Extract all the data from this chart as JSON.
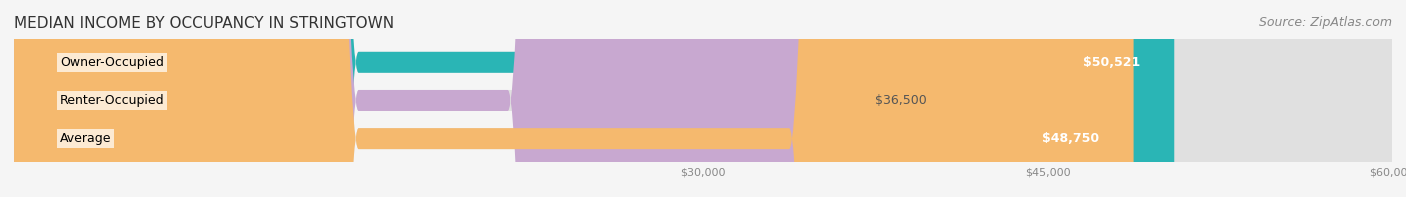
{
  "title": "MEDIAN INCOME BY OCCUPANCY IN STRINGTOWN",
  "source": "Source: ZipAtlas.com",
  "categories": [
    "Owner-Occupied",
    "Renter-Occupied",
    "Average"
  ],
  "values": [
    50521,
    36500,
    48750
  ],
  "bar_colors": [
    "#2ab5b5",
    "#c8a8d0",
    "#f5b96e"
  ],
  "bar_bg_color": "#e8e8e8",
  "label_texts": [
    "$50,521",
    "$36,500",
    "$48,750"
  ],
  "label_inside": [
    true,
    false,
    true
  ],
  "x_min": 0,
  "x_max": 60000,
  "x_ticks": [
    30000,
    45000,
    60000
  ],
  "x_tick_labels": [
    "$30,000",
    "$45,000",
    "$60,000"
  ],
  "title_fontsize": 11,
  "source_fontsize": 9,
  "bar_label_fontsize": 9,
  "category_fontsize": 9,
  "background_color": "#f5f5f5",
  "bar_bg_alpha": 1.0,
  "figsize": [
    14.06,
    1.97
  ],
  "dpi": 100
}
